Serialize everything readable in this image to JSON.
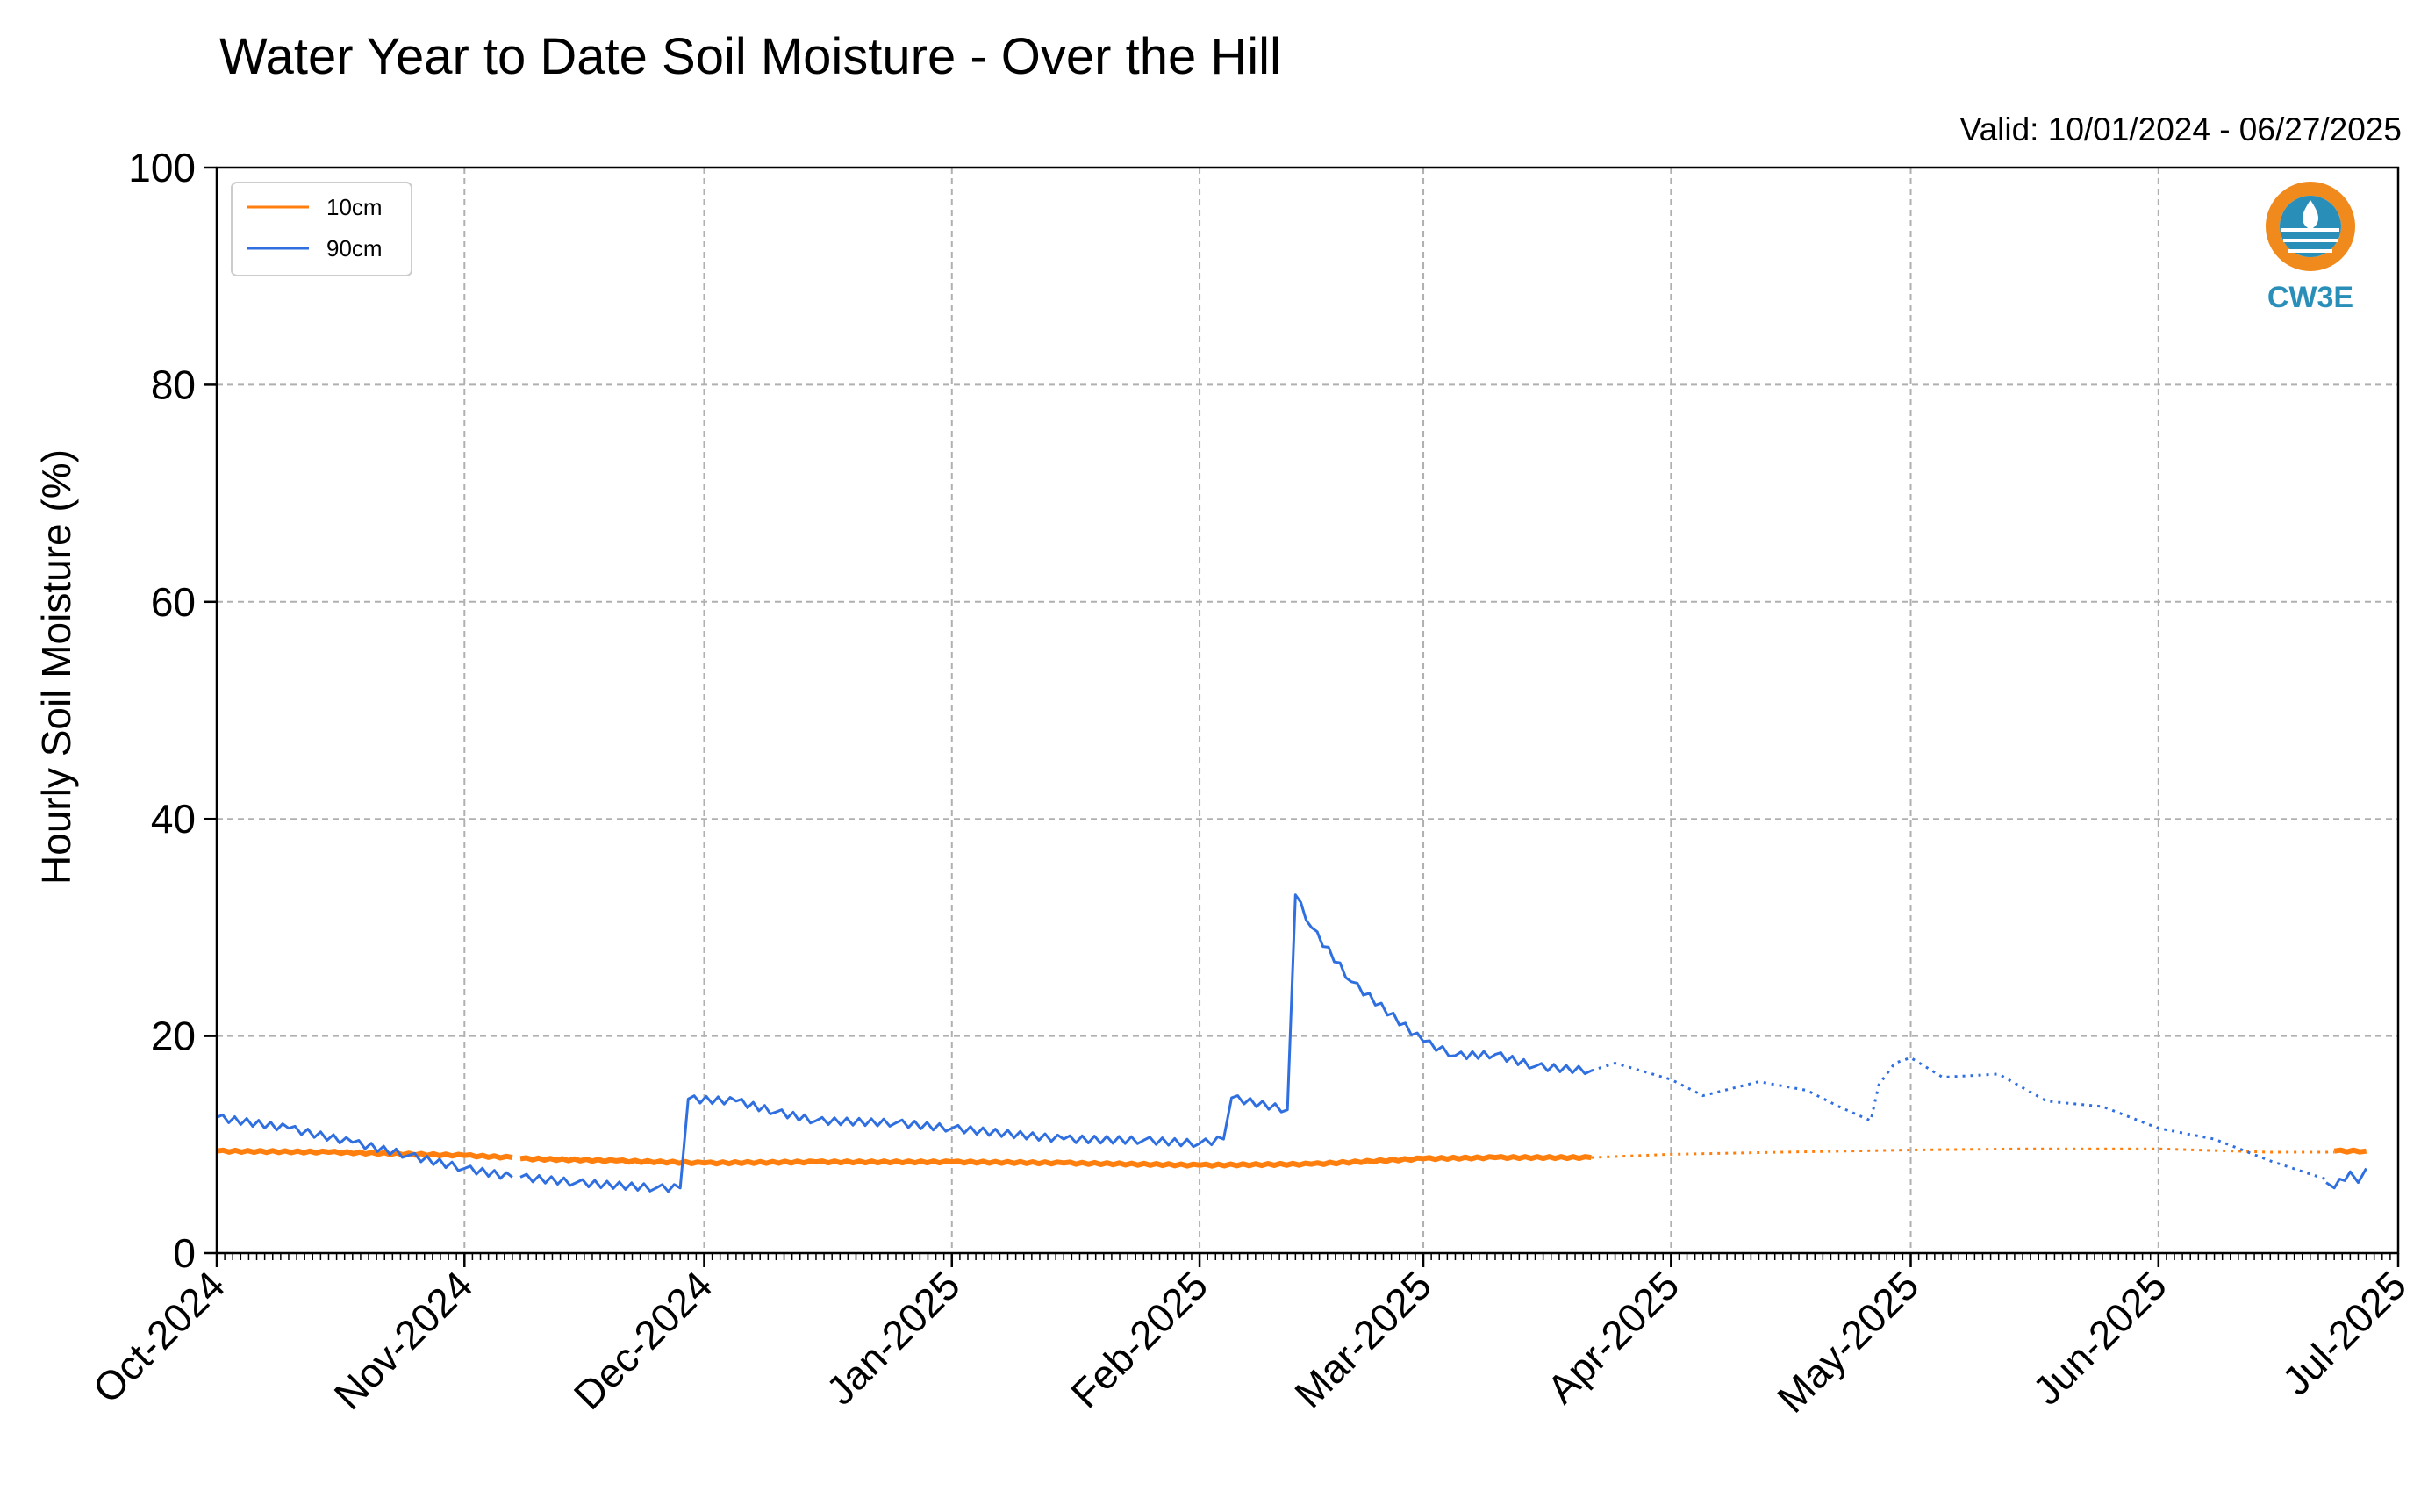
{
  "chart_data": {
    "type": "line",
    "title": "Water Year to Date Soil Moisture - Over the Hill",
    "subtitle": "Valid: 10/01/2024 - 06/27/2025",
    "xlabel": "",
    "ylabel": "Hourly Soil Moisture (%)",
    "ylim": [
      0,
      100
    ],
    "yticks": [
      0,
      20,
      40,
      60,
      80,
      100
    ],
    "xlim": [
      "2024-10-01",
      "2025-07-01"
    ],
    "xticks": [
      {
        "date": "2024-10-01",
        "label": "Oct-2024"
      },
      {
        "date": "2024-11-01",
        "label": "Nov-2024"
      },
      {
        "date": "2024-12-01",
        "label": "Dec-2024"
      },
      {
        "date": "2025-01-01",
        "label": "Jan-2025"
      },
      {
        "date": "2025-02-01",
        "label": "Feb-2025"
      },
      {
        "date": "2025-03-01",
        "label": "Mar-2025"
      },
      {
        "date": "2025-04-01",
        "label": "Apr-2025"
      },
      {
        "date": "2025-05-01",
        "label": "May-2025"
      },
      {
        "date": "2025-06-01",
        "label": "Jun-2025"
      },
      {
        "date": "2025-07-01",
        "label": "Jul-2025"
      }
    ],
    "grid": true,
    "legend_position": "top-left",
    "series": [
      {
        "name": "10cm",
        "color": "#ff7f0e",
        "segments": [
          {
            "style": "solid",
            "points": [
              [
                "2024-10-01",
                9.4
              ],
              [
                "2024-10-15",
                9.3
              ],
              [
                "2024-11-01",
                9.0
              ],
              [
                "2024-11-07",
                8.8
              ]
            ]
          },
          {
            "style": "solid",
            "points": [
              [
                "2024-11-08",
                8.7
              ],
              [
                "2024-11-20",
                8.5
              ],
              [
                "2024-12-01",
                8.3
              ],
              [
                "2024-12-15",
                8.4
              ],
              [
                "2025-01-01",
                8.4
              ],
              [
                "2025-01-15",
                8.3
              ],
              [
                "2025-02-01",
                8.1
              ],
              [
                "2025-02-15",
                8.2
              ],
              [
                "2025-03-01",
                8.7
              ],
              [
                "2025-03-10",
                8.8
              ],
              [
                "2025-03-22",
                8.8
              ]
            ]
          },
          {
            "style": "dotted",
            "points": [
              [
                "2025-03-22",
                8.8
              ],
              [
                "2025-04-01",
                9.1
              ],
              [
                "2025-04-15",
                9.3
              ],
              [
                "2025-05-01",
                9.5
              ],
              [
                "2025-05-15",
                9.6
              ],
              [
                "2025-06-01",
                9.6
              ],
              [
                "2025-06-15",
                9.3
              ],
              [
                "2025-06-23",
                9.3
              ]
            ]
          },
          {
            "style": "solid",
            "points": [
              [
                "2025-06-23",
                9.4
              ],
              [
                "2025-06-27",
                9.4
              ]
            ]
          }
        ]
      },
      {
        "name": "90cm",
        "color": "#2f6fe0",
        "segments": [
          {
            "style": "solid",
            "points": [
              [
                "2024-10-01",
                12.5
              ],
              [
                "2024-10-10",
                11.5
              ],
              [
                "2024-10-18",
                10.2
              ],
              [
                "2024-10-25",
                9.0
              ],
              [
                "2024-11-01",
                7.8
              ],
              [
                "2024-11-07",
                7.0
              ]
            ]
          },
          {
            "style": "solid",
            "points": [
              [
                "2024-11-08",
                7.0
              ],
              [
                "2024-11-15",
                6.5
              ],
              [
                "2024-11-25",
                6.0
              ],
              [
                "2024-11-28",
                6.0
              ],
              [
                "2024-11-29",
                14.2
              ],
              [
                "2024-12-05",
                14.0
              ],
              [
                "2024-12-10",
                13.0
              ],
              [
                "2024-12-15",
                12.2
              ],
              [
                "2024-12-25",
                12.0
              ],
              [
                "2025-01-01",
                11.5
              ],
              [
                "2025-01-15",
                10.5
              ],
              [
                "2025-01-25",
                10.4
              ],
              [
                "2025-02-01",
                10.1
              ],
              [
                "2025-02-04",
                10.5
              ],
              [
                "2025-02-05",
                14.3
              ],
              [
                "2025-02-12",
                13.2
              ],
              [
                "2025-02-13",
                33.0
              ],
              [
                "2025-02-15",
                30.0
              ],
              [
                "2025-02-20",
                25.0
              ],
              [
                "2025-03-01",
                19.5
              ],
              [
                "2025-03-05",
                18.2
              ],
              [
                "2025-03-10",
                18.3
              ],
              [
                "2025-03-15",
                17.2
              ],
              [
                "2025-03-22",
                16.8
              ]
            ]
          },
          {
            "style": "dotted",
            "points": [
              [
                "2025-03-22",
                16.8
              ],
              [
                "2025-03-25",
                17.5
              ],
              [
                "2025-04-01",
                16.0
              ],
              [
                "2025-04-05",
                14.5
              ],
              [
                "2025-04-12",
                15.8
              ],
              [
                "2025-04-18",
                15.0
              ],
              [
                "2025-04-22",
                13.5
              ],
              [
                "2025-04-26",
                12.2
              ],
              [
                "2025-04-27",
                15.5
              ],
              [
                "2025-04-29",
                17.5
              ],
              [
                "2025-05-01",
                18.0
              ],
              [
                "2025-05-05",
                16.2
              ],
              [
                "2025-05-12",
                16.5
              ],
              [
                "2025-05-18",
                14.0
              ],
              [
                "2025-05-25",
                13.5
              ],
              [
                "2025-06-01",
                11.5
              ],
              [
                "2025-06-08",
                10.5
              ],
              [
                "2025-06-15",
                8.5
              ],
              [
                "2025-06-22",
                6.8
              ]
            ]
          },
          {
            "style": "solid",
            "points": [
              [
                "2025-06-22",
                6.5
              ],
              [
                "2025-06-23",
                6.0
              ],
              [
                "2025-06-25",
                7.5
              ],
              [
                "2025-06-26",
                6.5
              ],
              [
                "2025-06-27",
                7.8
              ]
            ]
          }
        ]
      }
    ]
  },
  "logo": {
    "text": "CW3E",
    "color": "#2a8fb8",
    "accent": "#f08a1c"
  }
}
